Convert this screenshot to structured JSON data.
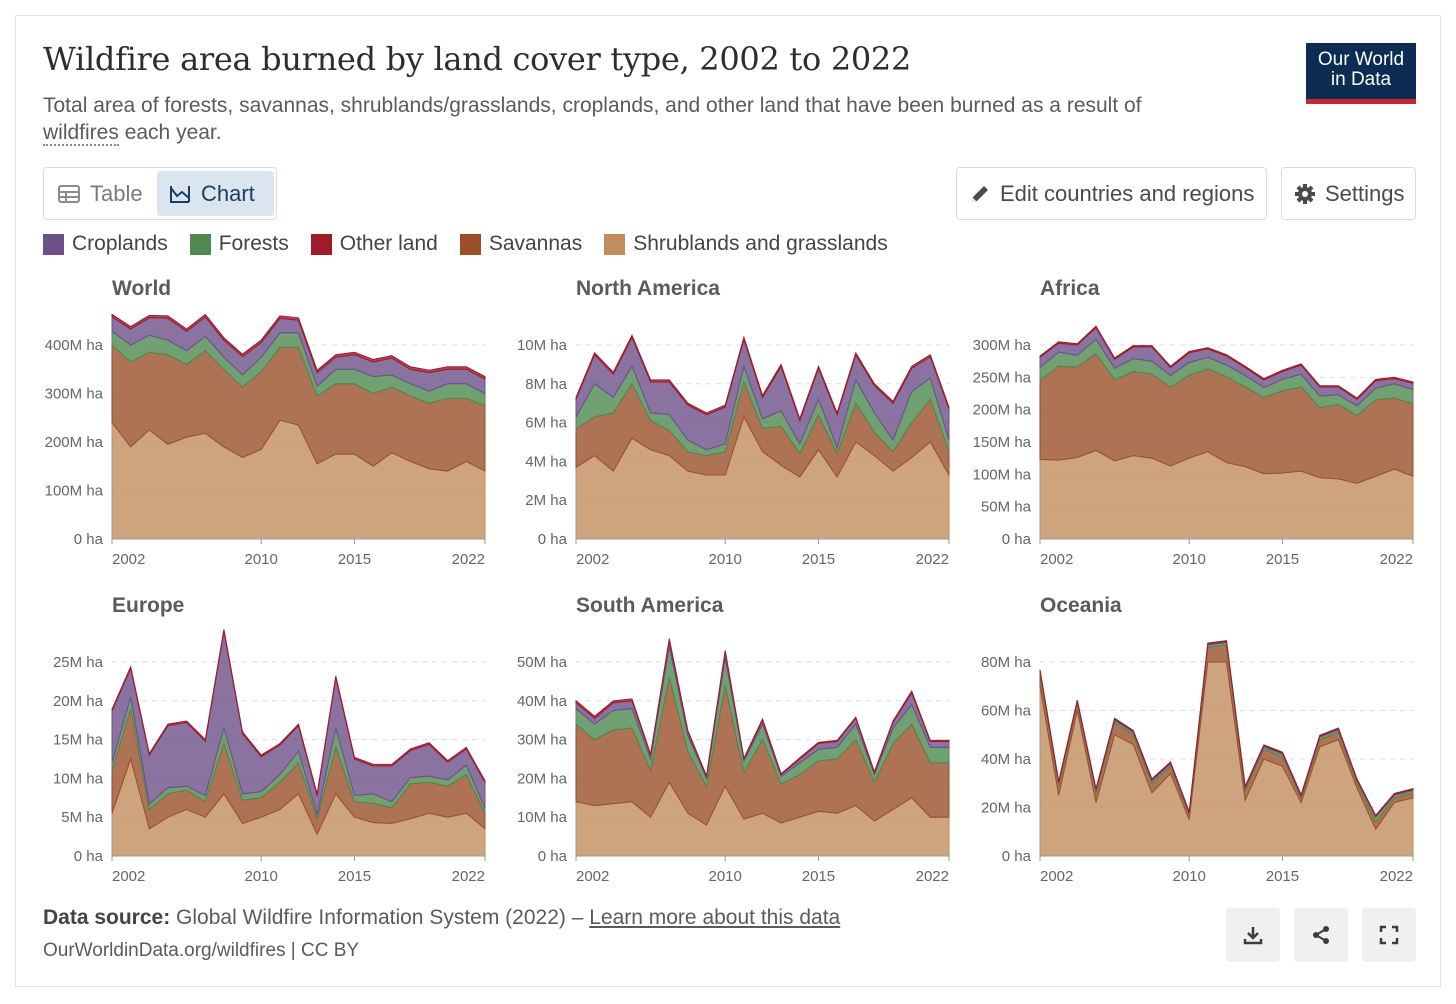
{
  "header": {
    "title": "Wildfire area burned by land cover type, 2002 to 2022",
    "subtitle_before": "Total area of forests, savannas, shrublands/grasslands, croplands, and other land that have been burned as a result of ",
    "subtitle_link": "wildfires",
    "subtitle_after": " each year.",
    "logo_line1": "Our World",
    "logo_line2": "in Data"
  },
  "tabs": {
    "table_label": "Table",
    "chart_label": "Chart",
    "active": "chart"
  },
  "toolbar": {
    "edit_label": "Edit countries and regions",
    "settings_label": "Settings"
  },
  "legend": [
    {
      "label": "Croplands",
      "color": "#6d4f8a",
      "icon": "purple-swatch"
    },
    {
      "label": "Forests",
      "color": "#4e8a4f",
      "icon": "green-swatch"
    },
    {
      "label": "Other land",
      "color": "#9e1b2a",
      "icon": "red-swatch"
    },
    {
      "label": "Savannas",
      "color": "#9a4f2a",
      "icon": "brown-swatch"
    },
    {
      "label": "Shrublands and grasslands",
      "color": "#c18d5c",
      "icon": "tan-swatch"
    }
  ],
  "footer": {
    "source_label": "Data source:",
    "source_text": " Global Wildfire Information System (2022) – ",
    "source_link": "Learn more about this data",
    "url_text": "OurWorldinData.org/wildfires | CC BY",
    "icons": [
      "download-icon",
      "share-icon",
      "fullscreen-icon"
    ]
  },
  "chart_data": [
    {
      "type": "area",
      "title": "World",
      "x": [
        2002,
        2003,
        2004,
        2005,
        2006,
        2007,
        2008,
        2009,
        2010,
        2011,
        2012,
        2013,
        2014,
        2015,
        2016,
        2017,
        2018,
        2019,
        2020,
        2021,
        2022
      ],
      "ylim": [
        0,
        400
      ],
      "yticks": [
        "0 ha",
        "100M ha",
        "200M ha",
        "300M ha",
        "400M ha"
      ],
      "xticks": [
        "2002",
        "2010",
        "2015",
        "2022"
      ],
      "series": [
        {
          "name": "Shrublands and grasslands",
          "values": [
            240,
            190,
            225,
            195,
            210,
            218,
            190,
            168,
            185,
            245,
            235,
            155,
            175,
            175,
            150,
            178,
            160,
            145,
            140,
            160,
            140
          ]
        },
        {
          "name": "Savannas",
          "values": [
            160,
            175,
            160,
            185,
            150,
            170,
            160,
            145,
            160,
            150,
            160,
            140,
            145,
            145,
            150,
            135,
            135,
            135,
            150,
            130,
            135
          ]
        },
        {
          "name": "Forests",
          "values": [
            28,
            35,
            35,
            30,
            28,
            30,
            25,
            25,
            30,
            30,
            30,
            20,
            30,
            30,
            35,
            25,
            25,
            25,
            30,
            30,
            25
          ]
        },
        {
          "name": "Croplands",
          "values": [
            30,
            33,
            36,
            45,
            40,
            40,
            35,
            38,
            30,
            30,
            26,
            28,
            25,
            30,
            30,
            35,
            30,
            38,
            30,
            30,
            30
          ]
        },
        {
          "name": "Other land",
          "values": [
            5,
            5,
            5,
            5,
            5,
            5,
            5,
            5,
            5,
            5,
            5,
            5,
            5,
            5,
            5,
            5,
            5,
            5,
            5,
            5,
            5
          ]
        }
      ]
    },
    {
      "type": "area",
      "title": "North America",
      "x": [
        2002,
        2003,
        2004,
        2005,
        2006,
        2007,
        2008,
        2009,
        2010,
        2011,
        2012,
        2013,
        2014,
        2015,
        2016,
        2017,
        2018,
        2019,
        2020,
        2021,
        2022
      ],
      "ylim": [
        0,
        10
      ],
      "yticks": [
        "0 ha",
        "2M ha",
        "4M ha",
        "6M ha",
        "8M ha",
        "10M ha"
      ],
      "xticks": [
        "2002",
        "2010",
        "2015",
        "2022"
      ],
      "series": [
        {
          "name": "Shrublands and grasslands",
          "values": [
            3.7,
            4.3,
            3.5,
            5.2,
            4.6,
            4.3,
            3.5,
            3.3,
            3.3,
            6.3,
            4.5,
            3.8,
            3.2,
            4.6,
            3.2,
            5.0,
            4.3,
            3.5,
            4.2,
            5.0,
            3.3
          ]
        },
        {
          "name": "Savannas",
          "values": [
            2.0,
            2.0,
            3.0,
            2.8,
            1.5,
            1.3,
            1.0,
            1.0,
            1.2,
            1.8,
            1.2,
            2.0,
            1.2,
            1.8,
            1.2,
            2.0,
            1.2,
            1.0,
            1.8,
            2.2,
            1.2
          ]
        },
        {
          "name": "Forests",
          "values": [
            0.6,
            1.7,
            0.8,
            0.9,
            0.4,
            0.8,
            0.6,
            0.3,
            0.4,
            0.8,
            0.5,
            0.8,
            0.5,
            0.8,
            0.3,
            1.2,
            1.0,
            0.6,
            1.6,
            1.1,
            0.6
          ]
        },
        {
          "name": "Croplands",
          "values": [
            0.9,
            1.5,
            1.2,
            1.5,
            1.6,
            1.7,
            1.8,
            1.8,
            1.9,
            1.4,
            1.1,
            2.3,
            1.2,
            1.6,
            1.7,
            1.3,
            1.4,
            1.9,
            1.2,
            1.1,
            1.6
          ]
        },
        {
          "name": "Other land",
          "values": [
            0.1,
            0.1,
            0.1,
            0.1,
            0.1,
            0.1,
            0.1,
            0.1,
            0.1,
            0.1,
            0.1,
            0.1,
            0.1,
            0.1,
            0.1,
            0.1,
            0.1,
            0.1,
            0.1,
            0.1,
            0.1
          ]
        }
      ]
    },
    {
      "type": "area",
      "title": "Africa",
      "x": [
        2002,
        2003,
        2004,
        2005,
        2006,
        2007,
        2008,
        2009,
        2010,
        2011,
        2012,
        2013,
        2014,
        2015,
        2016,
        2017,
        2018,
        2019,
        2020,
        2021,
        2022
      ],
      "ylim": [
        0,
        300
      ],
      "yticks": [
        "0 ha",
        "50M ha",
        "100M ha",
        "150M ha",
        "200M ha",
        "250M ha",
        "300M ha"
      ],
      "xticks": [
        "2002",
        "2010",
        "2015",
        "2022"
      ],
      "series": [
        {
          "name": "Shrublands and grasslands",
          "values": [
            123,
            122,
            126,
            137,
            121,
            129,
            125,
            113,
            125,
            135,
            118,
            112,
            101,
            102,
            105,
            95,
            93,
            86,
            97,
            108,
            97
          ]
        },
        {
          "name": "Savannas",
          "values": [
            122,
            145,
            140,
            150,
            125,
            130,
            130,
            122,
            128,
            128,
            133,
            123,
            118,
            127,
            130,
            108,
            115,
            105,
            118,
            110,
            112
          ]
        },
        {
          "name": "Forests",
          "values": [
            20,
            22,
            18,
            22,
            18,
            20,
            20,
            18,
            20,
            18,
            18,
            18,
            15,
            18,
            20,
            18,
            15,
            15,
            18,
            22,
            22
          ]
        },
        {
          "name": "Croplands",
          "values": [
            16,
            14,
            16,
            18,
            14,
            18,
            22,
            12,
            15,
            13,
            14,
            12,
            12,
            12,
            14,
            14,
            12,
            10,
            12,
            8,
            10
          ]
        },
        {
          "name": "Other land",
          "values": [
            2,
            2,
            2,
            2,
            2,
            2,
            2,
            2,
            2,
            2,
            2,
            2,
            2,
            2,
            2,
            2,
            2,
            2,
            2,
            2,
            2
          ]
        }
      ]
    },
    {
      "type": "area",
      "title": "Europe",
      "x": [
        2002,
        2003,
        2004,
        2005,
        2006,
        2007,
        2008,
        2009,
        2010,
        2011,
        2012,
        2013,
        2014,
        2015,
        2016,
        2017,
        2018,
        2019,
        2020,
        2021,
        2022
      ],
      "ylim": [
        0,
        25
      ],
      "yticks": [
        "0 ha",
        "5M ha",
        "10M ha",
        "15M ha",
        "20M ha",
        "25M ha"
      ],
      "xticks": [
        "2002",
        "2010",
        "2015",
        "2022"
      ],
      "series": [
        {
          "name": "Shrublands and grasslands",
          "values": [
            5.5,
            12.5,
            3.5,
            5.0,
            6.0,
            5.0,
            8.0,
            4.2,
            5.0,
            6.0,
            8.0,
            2.8,
            8.0,
            5.0,
            4.3,
            4.2,
            4.8,
            5.5,
            5.0,
            5.5,
            3.5
          ]
        },
        {
          "name": "Savannas",
          "values": [
            5.5,
            6.5,
            2.5,
            3.0,
            2.5,
            2.0,
            6.5,
            3.0,
            2.5,
            3.5,
            4.0,
            2.0,
            6.0,
            2.0,
            2.5,
            2.0,
            4.5,
            4.0,
            4.0,
            5.0,
            2.0
          ]
        },
        {
          "name": "Forests",
          "values": [
            1.0,
            1.5,
            0.7,
            0.8,
            0.5,
            0.8,
            2.0,
            0.8,
            0.8,
            1.0,
            1.5,
            0.5,
            2.5,
            0.8,
            1.2,
            0.8,
            0.8,
            0.8,
            0.8,
            1.2,
            0.7
          ]
        },
        {
          "name": "Croplands",
          "values": [
            6.7,
            3.7,
            6.3,
            8.0,
            8.2,
            7.0,
            12.5,
            7.8,
            4.5,
            3.8,
            3.3,
            2.5,
            6.5,
            4.7,
            3.6,
            4.6,
            3.5,
            4.1,
            2.3,
            2.1,
            3.3
          ]
        },
        {
          "name": "Other land",
          "values": [
            0.2,
            0.2,
            0.2,
            0.2,
            0.2,
            0.2,
            0.2,
            0.2,
            0.2,
            0.2,
            0.2,
            0.2,
            0.2,
            0.2,
            0.2,
            0.2,
            0.2,
            0.2,
            0.2,
            0.2,
            0.2
          ]
        }
      ]
    },
    {
      "type": "area",
      "title": "South America",
      "x": [
        2002,
        2003,
        2004,
        2005,
        2006,
        2007,
        2008,
        2009,
        2010,
        2011,
        2012,
        2013,
        2014,
        2015,
        2016,
        2017,
        2018,
        2019,
        2020,
        2021,
        2022
      ],
      "ylim": [
        0,
        50
      ],
      "yticks": [
        "0 ha",
        "10M ha",
        "20M ha",
        "30M ha",
        "40M ha",
        "50M ha"
      ],
      "xticks": [
        "2002",
        "2010",
        "2015",
        "2022"
      ],
      "series": [
        {
          "name": "Shrublands and grasslands",
          "values": [
            14,
            13,
            13.5,
            14,
            10,
            19,
            11,
            8,
            18,
            9.5,
            11,
            8.5,
            10,
            11.5,
            11,
            13,
            9,
            12,
            15,
            10,
            10
          ]
        },
        {
          "name": "Savannas",
          "values": [
            20,
            17,
            19,
            19,
            12,
            27,
            16,
            10,
            26,
            12,
            19,
            10,
            11,
            13,
            14,
            17,
            10,
            17,
            19,
            14,
            14
          ]
        },
        {
          "name": "Forests",
          "values": [
            4,
            4,
            5,
            5,
            3,
            8,
            4,
            2,
            7,
            3,
            4,
            2,
            3,
            3,
            3,
            4,
            2,
            4,
            5,
            4,
            4
          ]
        },
        {
          "name": "Croplands",
          "values": [
            1.5,
            1.5,
            2,
            2,
            1,
            1.5,
            1,
            0.5,
            1.5,
            0.5,
            1,
            0.5,
            1,
            1.5,
            1.5,
            1.5,
            0.5,
            1.5,
            3,
            1.5,
            1.5
          ]
        },
        {
          "name": "Other land",
          "values": [
            0.5,
            0.5,
            0.5,
            0.5,
            0.3,
            0.5,
            0.3,
            0.2,
            0.5,
            0.2,
            0.3,
            0.2,
            0.3,
            0.3,
            0.3,
            0.3,
            0.2,
            0.3,
            0.5,
            0.3,
            0.3
          ]
        }
      ]
    },
    {
      "type": "area",
      "title": "Oceania",
      "x": [
        2002,
        2003,
        2004,
        2005,
        2006,
        2007,
        2008,
        2009,
        2010,
        2011,
        2012,
        2013,
        2014,
        2015,
        2016,
        2017,
        2018,
        2019,
        2020,
        2021,
        2022
      ],
      "ylim": [
        0,
        80
      ],
      "yticks": [
        "0 ha",
        "20M ha",
        "40M ha",
        "60M ha",
        "80M ha"
      ],
      "xticks": [
        "2002",
        "2010",
        "2015",
        "2022"
      ],
      "series": [
        {
          "name": "Shrublands and grasslands",
          "values": [
            70,
            25,
            60,
            22,
            50,
            46,
            26,
            34,
            15,
            80,
            80,
            23,
            40,
            37,
            22,
            45,
            48,
            28,
            11,
            22,
            24
          ]
        },
        {
          "name": "Savannas",
          "values": [
            5,
            4,
            3,
            4,
            5,
            4,
            4,
            3,
            2,
            6,
            7,
            4,
            4,
            4,
            2,
            3,
            3,
            2,
            3,
            2,
            2
          ]
        },
        {
          "name": "Forests",
          "values": [
            1,
            1,
            0.5,
            1,
            1,
            1,
            1,
            1,
            0.5,
            1,
            1,
            1,
            1,
            1,
            0.5,
            1,
            1,
            1,
            2,
            1,
            1
          ]
        },
        {
          "name": "Croplands",
          "values": [
            0.5,
            0.5,
            0.5,
            0.5,
            0.5,
            0.5,
            0.5,
            0.5,
            0.5,
            0.5,
            0.5,
            0.5,
            0.5,
            0.5,
            0.5,
            0.5,
            0.5,
            0.5,
            0.5,
            0.5,
            0.5
          ]
        },
        {
          "name": "Other land",
          "values": [
            0.3,
            0.3,
            0.3,
            0.3,
            0.3,
            0.3,
            0.3,
            0.3,
            0.3,
            0.3,
            0.3,
            0.3,
            0.3,
            0.3,
            0.3,
            0.3,
            0.3,
            0.3,
            0.3,
            0.3,
            0.3
          ]
        }
      ]
    }
  ]
}
